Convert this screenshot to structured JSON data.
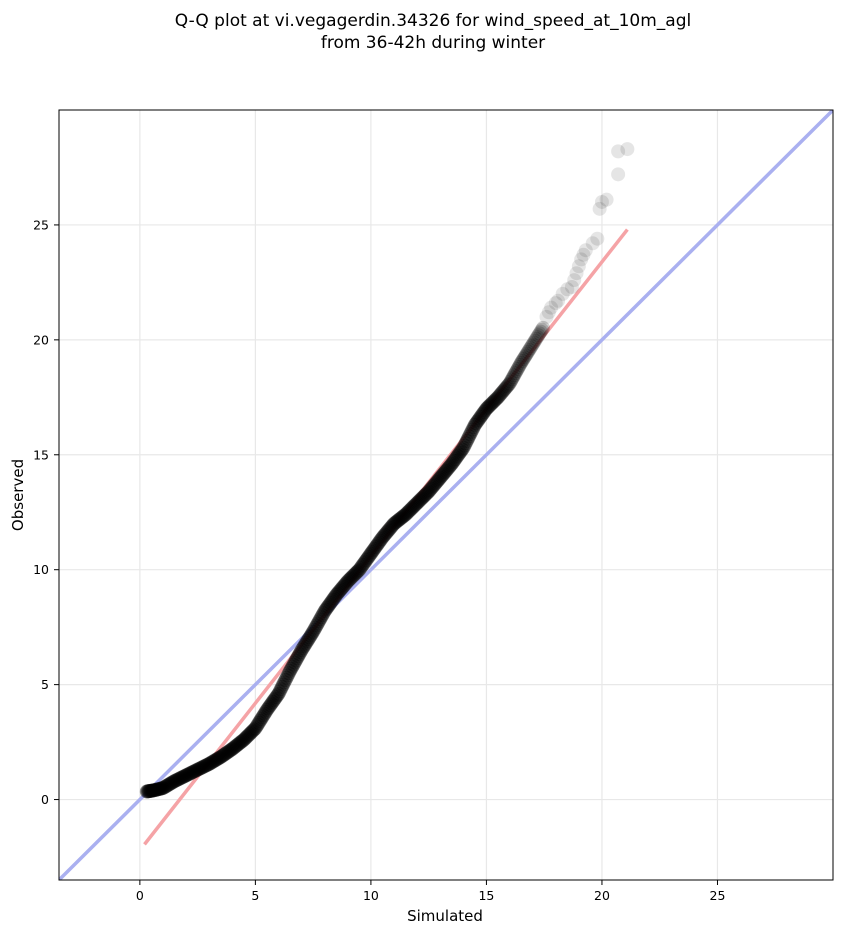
{
  "chart_data": {
    "type": "scatter",
    "title_lines": [
      "Q-Q plot at vi.vegagerdin.34326 for wind_speed_at_10m_agl",
      "from 36-42h during winter"
    ],
    "xlabel": "Simulated",
    "ylabel": "Observed",
    "xlim": [
      -3.5,
      30
    ],
    "ylim": [
      -3.5,
      30
    ],
    "xticks": [
      0,
      5,
      10,
      15,
      20,
      25
    ],
    "yticks": [
      0,
      5,
      10,
      15,
      20,
      25
    ],
    "grid": true,
    "colors": {
      "points": "#000000",
      "identity_line": "#aab0f0",
      "fit_line": "#f5a3a6",
      "grid": "#e8e8e8",
      "axes": "#000000"
    },
    "identity_line": {
      "from": [
        -3.5,
        -3.5
      ],
      "to": [
        30,
        30
      ]
    },
    "fit_line": {
      "from": [
        0.2,
        -1.95
      ],
      "to": [
        21.1,
        24.8
      ]
    },
    "qq_curve": [
      [
        0.3,
        0.35
      ],
      [
        0.6,
        0.4
      ],
      [
        1.0,
        0.5
      ],
      [
        1.5,
        0.8
      ],
      [
        2.0,
        1.05
      ],
      [
        2.5,
        1.3
      ],
      [
        3.0,
        1.55
      ],
      [
        3.5,
        1.85
      ],
      [
        4.0,
        2.2
      ],
      [
        4.5,
        2.6
      ],
      [
        5.0,
        3.1
      ],
      [
        5.5,
        3.9
      ],
      [
        6.0,
        4.6
      ],
      [
        6.5,
        5.6
      ],
      [
        7.0,
        6.5
      ],
      [
        7.5,
        7.3
      ],
      [
        8.0,
        8.2
      ],
      [
        8.5,
        8.9
      ],
      [
        9.0,
        9.5
      ],
      [
        9.5,
        10.0
      ],
      [
        10.0,
        10.7
      ],
      [
        10.5,
        11.4
      ],
      [
        11.0,
        12.0
      ],
      [
        11.5,
        12.4
      ],
      [
        12.0,
        12.9
      ],
      [
        12.5,
        13.4
      ],
      [
        13.0,
        14.0
      ],
      [
        13.5,
        14.6
      ],
      [
        14.0,
        15.3
      ],
      [
        14.5,
        16.3
      ],
      [
        15.0,
        17.0
      ],
      [
        15.5,
        17.5
      ],
      [
        16.0,
        18.1
      ],
      [
        16.5,
        19.0
      ],
      [
        17.0,
        19.8
      ],
      [
        17.5,
        20.6
      ]
    ],
    "tail_points": [
      [
        17.6,
        21.0
      ],
      [
        17.7,
        21.2
      ],
      [
        17.8,
        21.4
      ],
      [
        18.0,
        21.6
      ],
      [
        18.1,
        21.7
      ],
      [
        18.3,
        22.0
      ],
      [
        18.5,
        22.2
      ],
      [
        18.7,
        22.3
      ],
      [
        18.8,
        22.6
      ],
      [
        18.9,
        22.9
      ],
      [
        19.0,
        23.2
      ],
      [
        19.1,
        23.5
      ],
      [
        19.2,
        23.7
      ],
      [
        19.3,
        23.9
      ],
      [
        19.6,
        24.2
      ],
      [
        19.8,
        24.4
      ],
      [
        19.9,
        25.7
      ],
      [
        20.0,
        26.0
      ],
      [
        20.2,
        26.1
      ],
      [
        20.7,
        27.2
      ],
      [
        20.7,
        28.2
      ],
      [
        21.1,
        28.3
      ]
    ]
  }
}
